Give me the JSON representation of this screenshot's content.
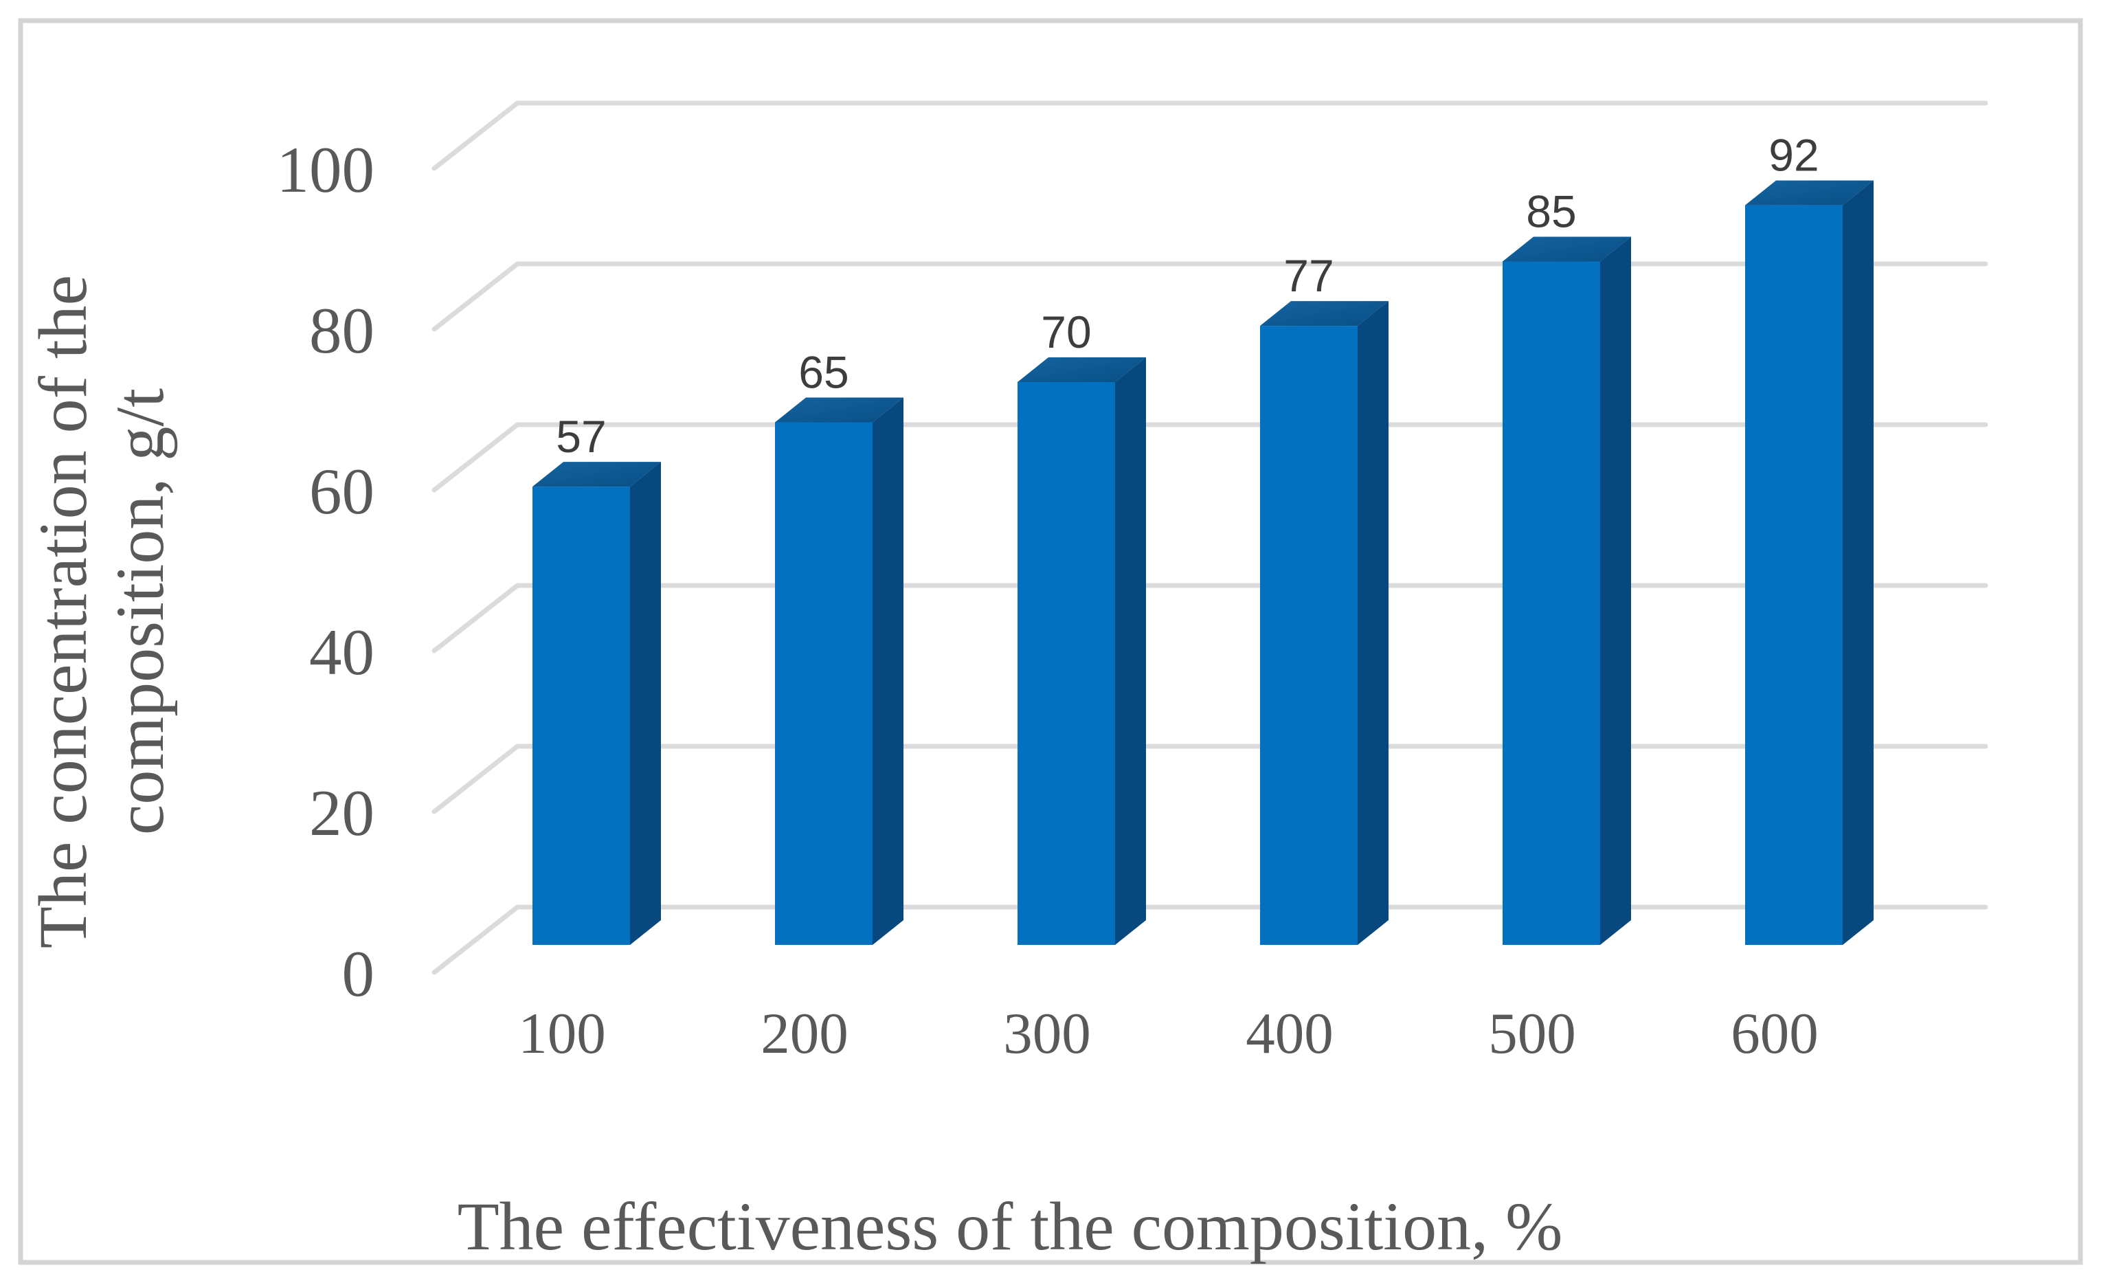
{
  "chart_data": {
    "type": "bar",
    "subtype": "3d-clustered-column",
    "title": "",
    "xlabel": "The effectiveness of the composition, %",
    "ylabel": "The concentration of the composition, g/t",
    "ylabel_lines": [
      "The concentration of the",
      "composition, g/t"
    ],
    "categories": [
      "100",
      "200",
      "300",
      "400",
      "500",
      "600"
    ],
    "values": [
      57,
      65,
      70,
      77,
      85,
      92
    ],
    "yticks": [
      0,
      20,
      40,
      60,
      80,
      100
    ],
    "ylim": [
      0,
      100
    ],
    "ytick_step": 20,
    "grid": true,
    "legend": "none",
    "data_labels_shown": true,
    "colors": {
      "bar_front": "#0470C0",
      "bar_side": "#07497E",
      "bar_top_light": "#15639F",
      "bar_top_dark": "#084F87",
      "gridline": "#DBDBDB",
      "frame": "#D4D4D4",
      "axis_text": "#595959",
      "data_label_text": "#3D3D3D",
      "background": "#FFFFFF"
    }
  }
}
